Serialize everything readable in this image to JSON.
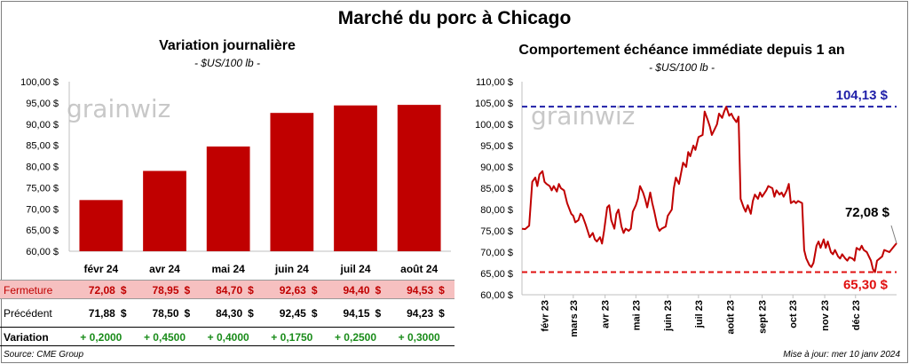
{
  "main_title": "Marché du porc à Chicago",
  "watermark": "grainwiz",
  "left": {
    "title": "Variation journalière",
    "subtitle": "- $US/100 lb -"
  },
  "right": {
    "title": "Comportement échéance immédiate depuis 1 an",
    "subtitle": "- $US/100 lb -",
    "high_label": "104,13 $",
    "last_label": "72,08 $",
    "low_label": "65,30 $"
  },
  "table": {
    "close_label": "Fermeture",
    "prev_label": "Précédent",
    "var_label": "Variation",
    "unit": "$",
    "close": [
      "72,08",
      "78,95",
      "84,70",
      "92,63",
      "94,40",
      "94,53"
    ],
    "prev": [
      "71,88",
      "78,50",
      "84,30",
      "92,45",
      "94,15",
      "94,23"
    ],
    "variation": [
      "+ 0,2000",
      "+ 0,4500",
      "+ 0,4000",
      "+ 0,1750",
      "+ 0,2500",
      "+ 0,3000"
    ]
  },
  "footer": {
    "source": "Source: CME Group",
    "updated": "Mise à jour: mer 10 janv 2024"
  },
  "colors": {
    "bar": "#c00000",
    "line": "#c00000",
    "high": "#1f1fa8",
    "low": "#e01010",
    "positive": "#1a8c1a"
  },
  "chart_data": [
    {
      "type": "bar",
      "title": "Variation journalière",
      "subtitle": "- $US/100 lb -",
      "categories": [
        "févr 24",
        "avr 24",
        "mai 24",
        "juin 24",
        "juil 24",
        "août 24"
      ],
      "values": [
        72.08,
        78.95,
        84.7,
        92.63,
        94.4,
        94.53
      ],
      "ylim": [
        60,
        100
      ],
      "yticks": [
        60,
        65,
        70,
        75,
        80,
        85,
        90,
        95,
        100
      ],
      "ytick_labels": [
        "60,00 $",
        "65,00 $",
        "70,00 $",
        "75,00 $",
        "80,00 $",
        "85,00 $",
        "90,00 $",
        "95,00 $",
        "100,00 $"
      ],
      "grid": false
    },
    {
      "type": "line",
      "title": "Comportement échéance immédiate depuis 1 an",
      "subtitle": "- $US/100 lb -",
      "xlim": [
        "2023-01-10",
        "2024-01-10"
      ],
      "ylim": [
        60,
        110
      ],
      "yticks": [
        60,
        65,
        70,
        75,
        80,
        85,
        90,
        95,
        100,
        105,
        110
      ],
      "ytick_labels": [
        "60,00 $",
        "65,00 $",
        "70,00 $",
        "75,00 $",
        "80,00 $",
        "85,00 $",
        "90,00 $",
        "95,00 $",
        "100,00 $",
        "105,00 $",
        "110,00 $"
      ],
      "xticks": [
        "2023-02-01",
        "2023-03-01",
        "2023-04-01",
        "2023-05-01",
        "2023-06-01",
        "2023-07-01",
        "2023-08-01",
        "2023-09-01",
        "2023-10-01",
        "2023-11-01",
        "2023-12-01"
      ],
      "xtick_labels": [
        "févr 23",
        "mars 23",
        "avr 23",
        "mai 23",
        "juin 23",
        "juil 23",
        "août 23",
        "sept 23",
        "oct 23",
        "nov 23",
        "déc 23"
      ],
      "reference_lines": [
        {
          "value": 104.13,
          "label": "104,13 $",
          "color": "#1f1fa8"
        },
        {
          "value": 65.3,
          "label": "65,30 $",
          "color": "#e01010"
        }
      ],
      "series": [
        {
          "values": [
            [
              "2023-01-10",
              75.5
            ],
            [
              "2023-01-13",
              75.4
            ],
            [
              "2023-01-17",
              76.2
            ],
            [
              "2023-01-20",
              86.5
            ],
            [
              "2023-01-23",
              87.5
            ],
            [
              "2023-01-25",
              85.5
            ],
            [
              "2023-01-27",
              88.2
            ],
            [
              "2023-01-30",
              89.0
            ],
            [
              "2023-02-01",
              86.5
            ],
            [
              "2023-02-03",
              86.0
            ],
            [
              "2023-02-06",
              85.5
            ],
            [
              "2023-02-08",
              84.5
            ],
            [
              "2023-02-10",
              85.5
            ],
            [
              "2023-02-13",
              84.2
            ],
            [
              "2023-02-15",
              86.0
            ],
            [
              "2023-02-17",
              85.0
            ],
            [
              "2023-02-20",
              84.5
            ],
            [
              "2023-02-23",
              81.5
            ],
            [
              "2023-02-27",
              79.0
            ],
            [
              "2023-03-01",
              78.5
            ],
            [
              "2023-03-03",
              77.0
            ],
            [
              "2023-03-06",
              77.5
            ],
            [
              "2023-03-08",
              79.0
            ],
            [
              "2023-03-10",
              78.5
            ],
            [
              "2023-03-13",
              76.5
            ],
            [
              "2023-03-15",
              75.0
            ],
            [
              "2023-03-17",
              73.5
            ],
            [
              "2023-03-20",
              74.5
            ],
            [
              "2023-03-22",
              73.0
            ],
            [
              "2023-03-24",
              72.5
            ],
            [
              "2023-03-27",
              73.5
            ],
            [
              "2023-03-29",
              72.0
            ],
            [
              "2023-03-31",
              75.0
            ],
            [
              "2023-04-03",
              80.5
            ],
            [
              "2023-04-05",
              81.0
            ],
            [
              "2023-04-07",
              77.5
            ],
            [
              "2023-04-10",
              75.5
            ],
            [
              "2023-04-12",
              79.0
            ],
            [
              "2023-04-14",
              80.0
            ],
            [
              "2023-04-17",
              76.0
            ],
            [
              "2023-04-19",
              74.5
            ],
            [
              "2023-04-21",
              75.5
            ],
            [
              "2023-04-24",
              75.0
            ],
            [
              "2023-04-26",
              75.5
            ],
            [
              "2023-04-28",
              79.5
            ],
            [
              "2023-05-01",
              81.0
            ],
            [
              "2023-05-03",
              82.5
            ],
            [
              "2023-05-05",
              85.5
            ],
            [
              "2023-05-08",
              84.0
            ],
            [
              "2023-05-10",
              82.5
            ],
            [
              "2023-05-12",
              80.5
            ],
            [
              "2023-05-15",
              84.0
            ],
            [
              "2023-05-17",
              81.5
            ],
            [
              "2023-05-19",
              79.5
            ],
            [
              "2023-05-22",
              76.0
            ],
            [
              "2023-05-24",
              75.0
            ],
            [
              "2023-05-26",
              75.5
            ],
            [
              "2023-05-30",
              76.0
            ],
            [
              "2023-06-01",
              78.5
            ],
            [
              "2023-06-05",
              80.0
            ],
            [
              "2023-06-07",
              85.0
            ],
            [
              "2023-06-09",
              87.5
            ],
            [
              "2023-06-12",
              86.0
            ],
            [
              "2023-06-14",
              88.5
            ],
            [
              "2023-06-16",
              91.0
            ],
            [
              "2023-06-19",
              90.0
            ],
            [
              "2023-06-21",
              93.5
            ],
            [
              "2023-06-23",
              92.5
            ],
            [
              "2023-06-26",
              95.0
            ],
            [
              "2023-06-28",
              94.0
            ],
            [
              "2023-07-01",
              97.0
            ],
            [
              "2023-07-05",
              97.5
            ],
            [
              "2023-07-07",
              103.0
            ],
            [
              "2023-07-10",
              101.0
            ],
            [
              "2023-07-12",
              99.5
            ],
            [
              "2023-07-14",
              97.5
            ],
            [
              "2023-07-17",
              99.0
            ],
            [
              "2023-07-19",
              100.0
            ],
            [
              "2023-07-21",
              102.5
            ],
            [
              "2023-07-24",
              101.5
            ],
            [
              "2023-07-26",
              103.0
            ],
            [
              "2023-07-28",
              104.1
            ],
            [
              "2023-07-31",
              102.0
            ],
            [
              "2023-08-02",
              102.5
            ],
            [
              "2023-08-04",
              101.5
            ],
            [
              "2023-08-07",
              100.5
            ],
            [
              "2023-08-09",
              101.8
            ],
            [
              "2023-08-11",
              82.5
            ],
            [
              "2023-08-14",
              80.5
            ],
            [
              "2023-08-16",
              79.5
            ],
            [
              "2023-08-18",
              81.0
            ],
            [
              "2023-08-21",
              79.0
            ],
            [
              "2023-08-23",
              82.0
            ],
            [
              "2023-08-25",
              83.5
            ],
            [
              "2023-08-28",
              82.5
            ],
            [
              "2023-08-30",
              84.0
            ],
            [
              "2023-09-01",
              83.0
            ],
            [
              "2023-09-05",
              84.5
            ],
            [
              "2023-09-07",
              85.5
            ],
            [
              "2023-09-11",
              85.0
            ],
            [
              "2023-09-13",
              83.0
            ],
            [
              "2023-09-15",
              84.5
            ],
            [
              "2023-09-18",
              83.5
            ],
            [
              "2023-09-20",
              84.0
            ],
            [
              "2023-09-22",
              83.0
            ],
            [
              "2023-09-25",
              84.5
            ],
            [
              "2023-09-27",
              86.0
            ],
            [
              "2023-09-29",
              81.5
            ],
            [
              "2023-10-02",
              82.0
            ],
            [
              "2023-10-04",
              81.5
            ],
            [
              "2023-10-06",
              82.0
            ],
            [
              "2023-10-10",
              81.5
            ],
            [
              "2023-10-12",
              70.5
            ],
            [
              "2023-10-14",
              68.5
            ],
            [
              "2023-10-17",
              67.0
            ],
            [
              "2023-10-19",
              66.5
            ],
            [
              "2023-10-21",
              67.5
            ],
            [
              "2023-10-24",
              71.5
            ],
            [
              "2023-10-26",
              72.5
            ],
            [
              "2023-10-28",
              71.0
            ],
            [
              "2023-10-31",
              73.0
            ],
            [
              "2023-11-02",
              71.0
            ],
            [
              "2023-11-04",
              72.5
            ],
            [
              "2023-11-07",
              70.0
            ],
            [
              "2023-11-09",
              69.5
            ],
            [
              "2023-11-11",
              70.5
            ],
            [
              "2023-11-14",
              69.0
            ],
            [
              "2023-11-16",
              68.5
            ],
            [
              "2023-11-18",
              69.5
            ],
            [
              "2023-11-21",
              68.5
            ],
            [
              "2023-11-23",
              68.0
            ],
            [
              "2023-11-25",
              68.8
            ],
            [
              "2023-11-28",
              68.5
            ],
            [
              "2023-11-30",
              68.0
            ],
            [
              "2023-12-02",
              71.0
            ],
            [
              "2023-12-05",
              70.5
            ],
            [
              "2023-12-07",
              71.5
            ],
            [
              "2023-12-09",
              70.5
            ],
            [
              "2023-12-12",
              70.0
            ],
            [
              "2023-12-14",
              69.0
            ],
            [
              "2023-12-16",
              68.0
            ],
            [
              "2023-12-18",
              66.0
            ],
            [
              "2023-12-20",
              65.3
            ],
            [
              "2023-12-22",
              68.0
            ],
            [
              "2023-12-27",
              69.0
            ],
            [
              "2023-12-29",
              70.5
            ],
            [
              "2024-01-03",
              70.0
            ],
            [
              "2024-01-08",
              71.5
            ],
            [
              "2024-01-10",
              72.08
            ]
          ]
        }
      ]
    }
  ]
}
